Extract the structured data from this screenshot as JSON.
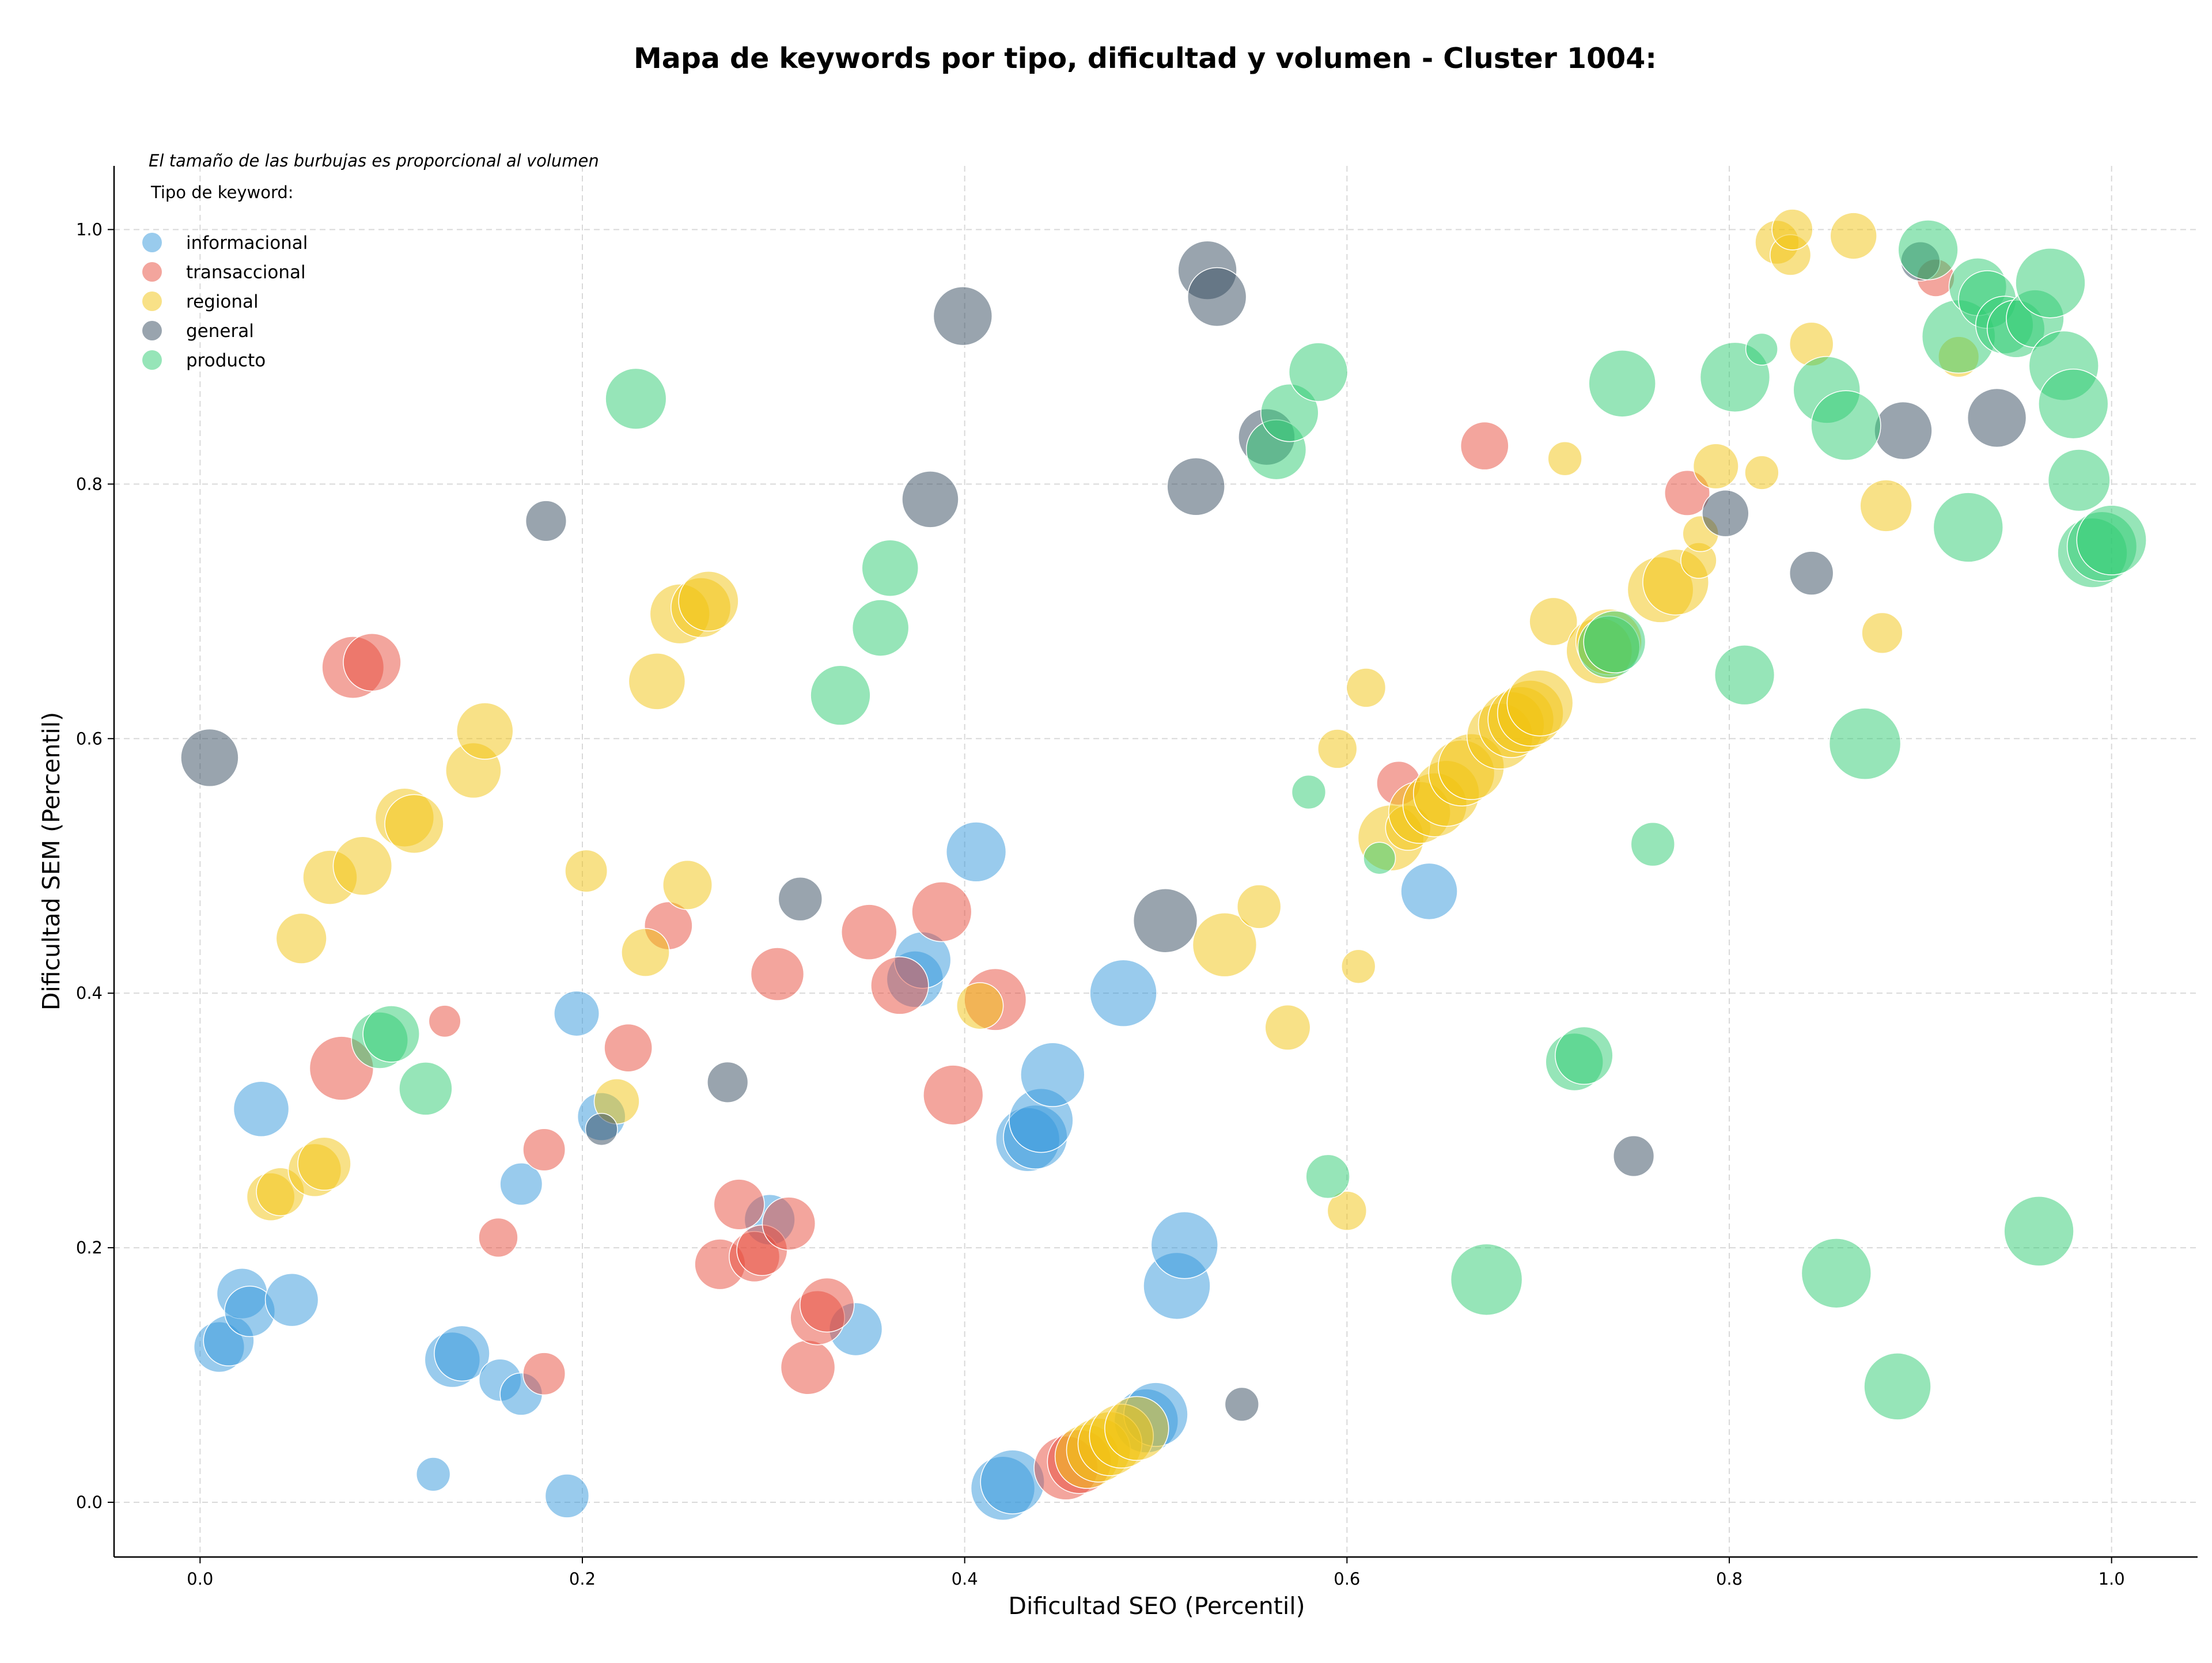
{
  "chart_data": {
    "type": "scatter",
    "title": "Mapa de keywords por tipo, dificultad y volumen - Cluster 1004:",
    "subtitle": "El tamaño de las burbujas es proporcional al volumen",
    "xlabel": "Dificultad SEO (Percentil)",
    "ylabel": "Dificultad SEM (Percentil)",
    "xlim": [
      -0.045,
      1.045
    ],
    "ylim": [
      -0.043,
      1.05
    ],
    "xticks": [
      0.0,
      0.2,
      0.4,
      0.6,
      0.8,
      1.0
    ],
    "yticks": [
      0.0,
      0.2,
      0.4,
      0.6,
      0.8,
      1.0
    ],
    "xtick_labels": [
      "0.0",
      "0.2",
      "0.4",
      "0.6",
      "0.8",
      "1.0"
    ],
    "ytick_labels": [
      "0.0",
      "0.2",
      "0.4",
      "0.6",
      "0.8",
      "1.0"
    ],
    "grid": true,
    "legend_title": "Tipo de keyword:",
    "legend_position": "top-left",
    "series": [
      {
        "name": "informacional",
        "color": "#3498db",
        "points": [
          [
            0.01,
            0.122,
            2
          ],
          [
            0.015,
            0.127,
            2
          ],
          [
            0.022,
            0.164,
            2
          ],
          [
            0.026,
            0.15,
            2
          ],
          [
            0.048,
            0.159,
            2.2
          ],
          [
            0.032,
            0.309,
            2.4
          ],
          [
            0.132,
            0.112,
            2.4
          ],
          [
            0.137,
            0.117,
            2.4
          ],
          [
            0.157,
            0.096,
            1.4
          ],
          [
            0.168,
            0.085,
            1.4
          ],
          [
            0.168,
            0.25,
            1.4
          ],
          [
            0.122,
            0.022,
            0.9
          ],
          [
            0.192,
            0.005,
            1.5
          ],
          [
            0.197,
            0.384,
            1.6
          ],
          [
            0.21,
            0.303,
            1.8
          ],
          [
            0.298,
            0.222,
            2
          ],
          [
            0.343,
            0.136,
            2.2
          ],
          [
            0.374,
            0.411,
            2.5
          ],
          [
            0.378,
            0.426,
            2.5
          ],
          [
            0.406,
            0.511,
            2.8
          ],
          [
            0.42,
            0.011,
            3.2
          ],
          [
            0.425,
            0.016,
            3.2
          ],
          [
            0.433,
            0.285,
            3.2
          ],
          [
            0.437,
            0.287,
            3.2
          ],
          [
            0.44,
            0.3,
            3.2
          ],
          [
            0.446,
            0.336,
            3.2
          ],
          [
            0.483,
            0.4,
            3.5
          ],
          [
            0.495,
            0.064,
            3.2
          ],
          [
            0.5,
            0.069,
            3.2
          ],
          [
            0.511,
            0.17,
            3.5
          ],
          [
            0.515,
            0.202,
            3.5
          ],
          [
            0.643,
            0.48,
            2.5
          ]
        ]
      },
      {
        "name": "transaccional",
        "color": "#e74c3c",
        "points": [
          [
            0.074,
            0.341,
            3.2
          ],
          [
            0.08,
            0.656,
            3
          ],
          [
            0.09,
            0.66,
            2.6
          ],
          [
            0.128,
            0.378,
            0.8
          ],
          [
            0.156,
            0.208,
            1.2
          ],
          [
            0.18,
            0.277,
            1.4
          ],
          [
            0.18,
            0.101,
            1.4
          ],
          [
            0.224,
            0.357,
            1.8
          ],
          [
            0.245,
            0.453,
            1.8
          ],
          [
            0.272,
            0.187,
            2
          ],
          [
            0.282,
            0.234,
            2
          ],
          [
            0.29,
            0.193,
            2
          ],
          [
            0.294,
            0.198,
            2
          ],
          [
            0.302,
            0.415,
            2.2
          ],
          [
            0.308,
            0.219,
            2.2
          ],
          [
            0.318,
            0.106,
            2.3
          ],
          [
            0.323,
            0.145,
            2.3
          ],
          [
            0.328,
            0.155,
            2.3
          ],
          [
            0.35,
            0.448,
            2.4
          ],
          [
            0.366,
            0.406,
            2.6
          ],
          [
            0.388,
            0.464,
            2.8
          ],
          [
            0.394,
            0.32,
            2.8
          ],
          [
            0.416,
            0.395,
            3
          ],
          [
            0.453,
            0.027,
            3.2
          ],
          [
            0.46,
            0.032,
            3.2
          ],
          [
            0.627,
            0.565,
            1.5
          ],
          [
            0.672,
            0.83,
            1.8
          ],
          [
            0.778,
            0.793,
            1.6
          ],
          [
            0.908,
            0.962,
            1.1
          ]
        ]
      },
      {
        "name": "regional",
        "color": "#f1c40f",
        "points": [
          [
            0.037,
            0.24,
            1.8
          ],
          [
            0.042,
            0.244,
            1.8
          ],
          [
            0.053,
            0.443,
            2
          ],
          [
            0.06,
            0.261,
            2.2
          ],
          [
            0.065,
            0.266,
            2.2
          ],
          [
            0.068,
            0.491,
            2.3
          ],
          [
            0.085,
            0.5,
            2.7
          ],
          [
            0.107,
            0.538,
            2.7
          ],
          [
            0.112,
            0.533,
            2.7
          ],
          [
            0.143,
            0.575,
            2.4
          ],
          [
            0.149,
            0.606,
            2.5
          ],
          [
            0.202,
            0.496,
            1.4
          ],
          [
            0.218,
            0.315,
            1.6
          ],
          [
            0.233,
            0.432,
            1.8
          ],
          [
            0.239,
            0.645,
            2.5
          ],
          [
            0.251,
            0.698,
            2.8
          ],
          [
            0.255,
            0.485,
            1.9
          ],
          [
            0.262,
            0.703,
            2.8
          ],
          [
            0.266,
            0.708,
            2.8
          ],
          [
            0.408,
            0.39,
            1.7
          ],
          [
            0.464,
            0.036,
            3.2
          ],
          [
            0.47,
            0.041,
            3.2
          ],
          [
            0.476,
            0.046,
            3.2
          ],
          [
            0.482,
            0.052,
            3.2
          ],
          [
            0.49,
            0.058,
            3.2
          ],
          [
            0.536,
            0.438,
            3.2
          ],
          [
            0.554,
            0.468,
            1.5
          ],
          [
            0.569,
            0.373,
            1.6
          ],
          [
            0.595,
            0.592,
            1.2
          ],
          [
            0.6,
            0.229,
            1.2
          ],
          [
            0.606,
            0.421,
            0.9
          ],
          [
            0.61,
            0.64,
            1.2
          ],
          [
            0.623,
            0.522,
            3.4
          ],
          [
            0.632,
            0.53,
            1.6
          ],
          [
            0.638,
            0.542,
            3
          ],
          [
            0.646,
            0.548,
            3.2
          ],
          [
            0.652,
            0.557,
            3.4
          ],
          [
            0.66,
            0.573,
            3.4
          ],
          [
            0.665,
            0.578,
            3.4
          ],
          [
            0.68,
            0.602,
            3.4
          ],
          [
            0.686,
            0.611,
            3.4
          ],
          [
            0.691,
            0.615,
            3.4
          ],
          [
            0.696,
            0.62,
            3.4
          ],
          [
            0.701,
            0.628,
            3.4
          ],
          [
            0.708,
            0.692,
            1.8
          ],
          [
            0.714,
            0.82,
            0.9
          ],
          [
            0.732,
            0.669,
            3.4
          ],
          [
            0.737,
            0.676,
            3.4
          ],
          [
            0.764,
            0.717,
            3.4
          ],
          [
            0.772,
            0.723,
            3.4
          ],
          [
            0.784,
            0.74,
            1
          ],
          [
            0.785,
            0.761,
            1
          ],
          [
            0.793,
            0.814,
            1.6
          ],
          [
            0.817,
            0.809,
            0.9
          ],
          [
            0.825,
            0.99,
            1.5
          ],
          [
            0.832,
            0.98,
            1.3
          ],
          [
            0.833,
            1.0,
            1.3
          ],
          [
            0.843,
            0.91,
            1.5
          ],
          [
            0.865,
            0.995,
            1.7
          ],
          [
            0.88,
            0.683,
            1.3
          ],
          [
            0.882,
            0.783,
            2.1
          ],
          [
            0.92,
            0.9,
            1.3
          ]
        ]
      },
      {
        "name": "general",
        "color": "#34495e",
        "points": [
          [
            0.005,
            0.585,
            2.6
          ],
          [
            0.181,
            0.771,
            1.3
          ],
          [
            0.21,
            0.293,
            0.8
          ],
          [
            0.276,
            0.33,
            1.3
          ],
          [
            0.314,
            0.474,
            1.5
          ],
          [
            0.382,
            0.788,
            2.5
          ],
          [
            0.399,
            0.932,
            2.7
          ],
          [
            0.505,
            0.457,
            3.2
          ],
          [
            0.521,
            0.798,
            2.6
          ],
          [
            0.527,
            0.968,
            2.7
          ],
          [
            0.532,
            0.947,
            2.7
          ],
          [
            0.545,
            0.077,
            0.9
          ],
          [
            0.558,
            0.837,
            2.5
          ],
          [
            0.75,
            0.272,
            1.3
          ],
          [
            0.798,
            0.777,
            1.7
          ],
          [
            0.843,
            0.73,
            1.5
          ],
          [
            0.891,
            0.842,
            2.6
          ],
          [
            0.94,
            0.852,
            2.7
          ],
          [
            0.9,
            0.975,
            1.2
          ]
        ]
      },
      {
        "name": "producto",
        "color": "#2ecc71",
        "points": [
          [
            0.094,
            0.363,
            2.5
          ],
          [
            0.1,
            0.368,
            2.5
          ],
          [
            0.118,
            0.325,
            2.2
          ],
          [
            0.228,
            0.867,
            2.9
          ],
          [
            0.335,
            0.634,
            2.8
          ],
          [
            0.356,
            0.687,
            2.5
          ],
          [
            0.361,
            0.734,
            2.5
          ],
          [
            0.563,
            0.827,
            2.8
          ],
          [
            0.57,
            0.856,
            2.6
          ],
          [
            0.585,
            0.888,
            2.7
          ],
          [
            0.58,
            0.558,
            0.9
          ],
          [
            0.59,
            0.256,
            1.5
          ],
          [
            0.617,
            0.506,
            0.8
          ],
          [
            0.673,
            0.175,
            4
          ],
          [
            0.719,
            0.346,
            2.6
          ],
          [
            0.724,
            0.351,
            2.6
          ],
          [
            0.737,
            0.672,
            3
          ],
          [
            0.74,
            0.676,
            3
          ],
          [
            0.744,
            0.879,
            3.5
          ],
          [
            0.76,
            0.517,
            1.5
          ],
          [
            0.803,
            0.884,
            3.8
          ],
          [
            0.808,
            0.65,
            2.8
          ],
          [
            0.817,
            0.906,
            0.8
          ],
          [
            0.851,
            0.874,
            3.5
          ],
          [
            0.856,
            0.18,
            3.8
          ],
          [
            0.861,
            0.846,
            3.8
          ],
          [
            0.871,
            0.596,
            4
          ],
          [
            0.888,
            0.091,
            3.5
          ],
          [
            0.904,
            0.984,
            2.8
          ],
          [
            0.92,
            0.916,
            4.2
          ],
          [
            0.93,
            0.955,
            2.6
          ],
          [
            0.935,
            0.945,
            2.6
          ],
          [
            0.925,
            0.766,
            3.8
          ],
          [
            0.944,
            0.925,
            2.6
          ],
          [
            0.95,
            0.922,
            2.6
          ],
          [
            0.96,
            0.93,
            2.6
          ],
          [
            0.962,
            0.213,
            3.8
          ],
          [
            0.968,
            0.958,
            3.8
          ],
          [
            0.975,
            0.893,
            3.8
          ],
          [
            0.98,
            0.863,
            3.8
          ],
          [
            0.983,
            0.803,
            3
          ],
          [
            0.99,
            0.746,
            3.8
          ],
          [
            0.995,
            0.751,
            3.8
          ],
          [
            1.0,
            0.756,
            3.8
          ]
        ]
      }
    ]
  }
}
